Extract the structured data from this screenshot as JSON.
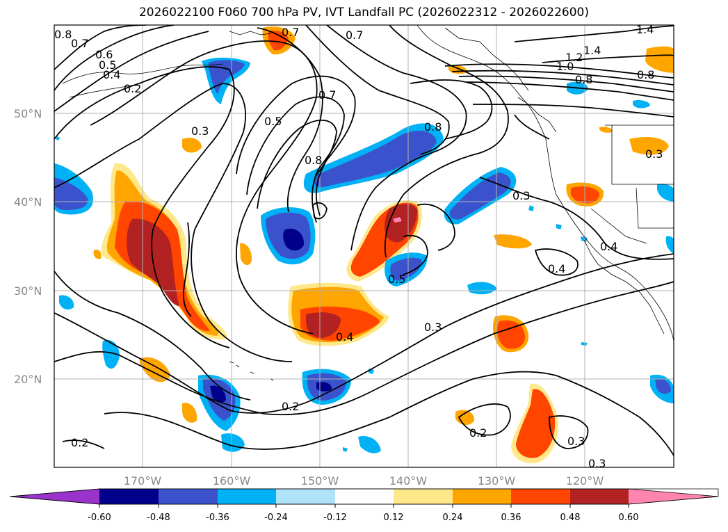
{
  "title": "2026022100 F060 700 hPa PV, IVT Landfall PC (2026022312 - 2026022600)",
  "map": {
    "lat_labels": [
      "50°N",
      "40°N",
      "30°N",
      "20°N"
    ],
    "lon_labels": [
      "170°W",
      "160°W",
      "150°W",
      "140°W",
      "130°W",
      "120°W"
    ],
    "contour_labels": [
      "0.8",
      "0.7",
      "0.6",
      "0.5",
      "0.4",
      "0.2",
      "0.7",
      "0.7",
      "1.4",
      "1.4",
      "1.2",
      "1.0",
      "0.8",
      "0.8",
      "0.3",
      "0.5",
      "0.7",
      "0.8",
      "0.8",
      "0.3",
      "0.3",
      "0.4",
      "0.4",
      "0.5",
      "0.4",
      "0.3",
      "0.2",
      "0.2",
      "0.2",
      "0.3",
      "0.3"
    ]
  },
  "colorbar": {
    "tick_labels": [
      "-0.60",
      "-0.48",
      "-0.36",
      "-0.24",
      "-0.12",
      "0.12",
      "0.24",
      "0.36",
      "0.48",
      "0.60"
    ],
    "colors": [
      "#9933cc",
      "#00008b",
      "#3a53cc",
      "#00b2f5",
      "#b0e2fa",
      "#ffffff",
      "#ffe88a",
      "#ffa500",
      "#ff4500",
      "#b22222",
      "#ff85b0"
    ]
  }
}
